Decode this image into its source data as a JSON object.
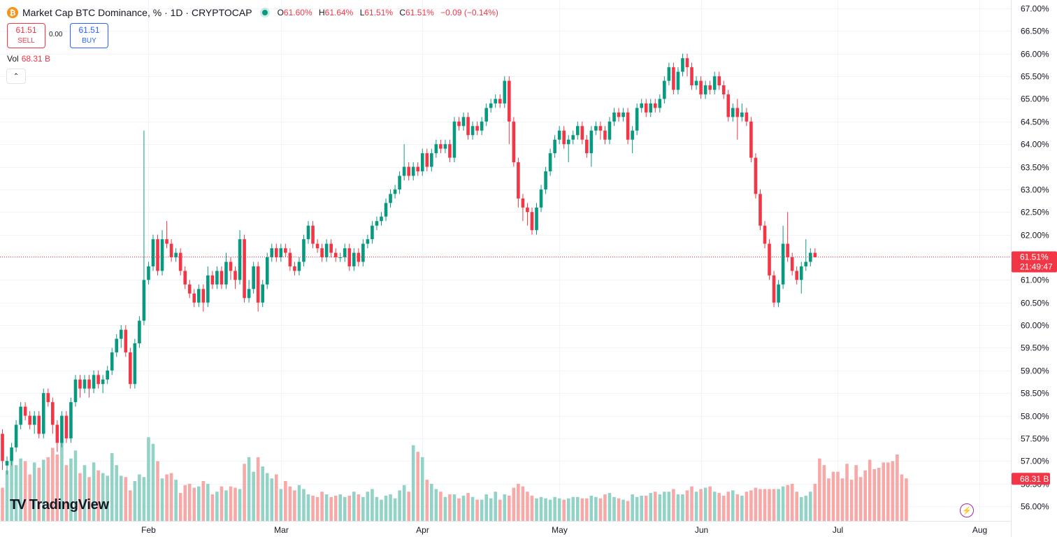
{
  "header": {
    "title": "Market Cap BTC Dominance, % · 1D · CRYPTOCAP",
    "coin_glyph": "₿",
    "open_label": "O",
    "open": "61.60%",
    "high_label": "H",
    "high": "61.64%",
    "low_label": "L",
    "low": "61.51%",
    "close_label": "C",
    "close": "61.51%",
    "change": "−0.09 (−0.14%)"
  },
  "trade": {
    "sell_price": "61.51",
    "sell_label": "SELL",
    "spread": "0.00",
    "buy_price": "61.51",
    "buy_label": "BUY"
  },
  "volume": {
    "label": "Vol",
    "value": "68.31 B"
  },
  "collapse_glyph": "⌃",
  "branding": {
    "logo_mark": "TV",
    "logo_text": "TradingView"
  },
  "bolt_glyph": "⚡",
  "colors": {
    "up": "#089981",
    "down": "#f23645",
    "vol_up": "#93d2c7",
    "vol_down": "#f7a9a7"
  },
  "chart_data": {
    "type": "candlestick",
    "ylim": [
      55.75,
      67.2
    ],
    "y_ticks": [
      "56.00%",
      "56.50%",
      "57.00%",
      "57.50%",
      "58.00%",
      "58.50%",
      "59.00%",
      "59.50%",
      "60.00%",
      "60.50%",
      "61.00%",
      "61.50%",
      "62.00%",
      "62.50%",
      "63.00%",
      "63.50%",
      "64.00%",
      "64.50%",
      "65.00%",
      "65.50%",
      "66.00%",
      "66.50%",
      "67.00%"
    ],
    "x_ticks": [
      {
        "label": "Feb",
        "index": 32
      },
      {
        "label": "Mar",
        "index": 61
      },
      {
        "label": "Apr",
        "index": 92
      },
      {
        "label": "May",
        "index": 122
      },
      {
        "label": "Jun",
        "index": 153
      },
      {
        "label": "Jul",
        "index": 183
      },
      {
        "label": "Aug",
        "index": 214
      }
    ],
    "last_price": "61.51%",
    "countdown": "21:49:47",
    "last_volume": "68.31 B",
    "candles": [
      [
        57.6,
        57.0,
        57.7,
        56.8
      ],
      [
        56.9,
        57.0,
        57.1,
        56.7
      ],
      [
        57.0,
        57.3,
        57.4,
        56.9
      ],
      [
        57.3,
        57.8,
        57.9,
        57.2
      ],
      [
        57.8,
        58.2,
        58.3,
        57.7
      ],
      [
        58.2,
        58.0,
        58.3,
        57.9
      ],
      [
        58.0,
        57.8,
        58.1,
        57.7
      ],
      [
        57.8,
        58.0,
        58.1,
        57.6
      ],
      [
        58.0,
        57.6,
        58.1,
        57.5
      ],
      [
        57.6,
        58.5,
        58.6,
        57.5
      ],
      [
        58.5,
        58.3,
        58.6,
        58.2
      ],
      [
        58.3,
        57.8,
        58.4,
        57.6
      ],
      [
        57.8,
        57.4,
        57.9,
        57.2
      ],
      [
        57.4,
        58.0,
        58.1,
        57.3
      ],
      [
        58.0,
        57.5,
        58.1,
        57.4
      ],
      [
        57.5,
        58.3,
        58.4,
        57.4
      ],
      [
        58.3,
        58.8,
        58.9,
        58.2
      ],
      [
        58.8,
        58.6,
        58.9,
        58.4
      ],
      [
        58.6,
        58.8,
        58.9,
        58.5
      ],
      [
        58.8,
        58.6,
        58.9,
        58.4
      ],
      [
        58.6,
        58.9,
        59.0,
        58.5
      ],
      [
        58.9,
        58.7,
        59.0,
        58.6
      ],
      [
        58.7,
        58.8,
        58.9,
        58.5
      ],
      [
        58.8,
        59.0,
        59.1,
        58.7
      ],
      [
        59.0,
        59.4,
        59.5,
        58.9
      ],
      [
        59.4,
        59.7,
        59.8,
        59.3
      ],
      [
        59.7,
        59.9,
        60.0,
        59.5
      ],
      [
        59.9,
        59.4,
        60.0,
        59.3
      ],
      [
        59.4,
        58.7,
        59.5,
        58.6
      ],
      [
        58.7,
        59.6,
        59.7,
        58.6
      ],
      [
        59.6,
        60.1,
        60.2,
        59.5
      ],
      [
        60.1,
        61.0,
        64.3,
        60.0
      ],
      [
        61.0,
        61.3,
        61.4,
        60.9
      ],
      [
        61.3,
        61.9,
        62.0,
        61.2
      ],
      [
        61.9,
        61.2,
        62.0,
        61.1
      ],
      [
        61.2,
        61.9,
        62.1,
        61.1
      ],
      [
        61.9,
        61.8,
        62.3,
        61.7
      ],
      [
        61.8,
        61.5,
        61.9,
        61.4
      ],
      [
        61.5,
        61.6,
        61.7,
        61.4
      ],
      [
        61.6,
        61.2,
        61.7,
        61.1
      ],
      [
        61.2,
        60.9,
        61.3,
        60.8
      ],
      [
        60.9,
        60.7,
        61.0,
        60.6
      ],
      [
        60.7,
        60.5,
        60.8,
        60.4
      ],
      [
        60.5,
        60.8,
        60.9,
        60.4
      ],
      [
        60.8,
        60.5,
        60.9,
        60.3
      ],
      [
        60.5,
        61.1,
        61.3,
        60.4
      ],
      [
        61.1,
        60.9,
        61.2,
        60.8
      ],
      [
        60.9,
        61.2,
        61.3,
        60.8
      ],
      [
        61.2,
        60.9,
        61.3,
        60.8
      ],
      [
        60.9,
        61.4,
        61.6,
        60.8
      ],
      [
        61.4,
        61.2,
        61.5,
        61.0
      ],
      [
        61.2,
        61.0,
        61.3,
        60.8
      ],
      [
        61.0,
        61.9,
        62.1,
        60.9
      ],
      [
        61.9,
        60.6,
        62.0,
        60.5
      ],
      [
        60.6,
        60.8,
        61.0,
        60.5
      ],
      [
        60.8,
        61.3,
        61.4,
        60.7
      ],
      [
        61.3,
        60.5,
        61.4,
        60.3
      ],
      [
        60.5,
        60.9,
        61.0,
        60.4
      ],
      [
        60.9,
        61.5,
        61.6,
        60.8
      ],
      [
        61.5,
        61.7,
        61.8,
        61.4
      ],
      [
        61.7,
        61.5,
        61.8,
        61.4
      ],
      [
        61.5,
        61.7,
        61.8,
        61.4
      ],
      [
        61.7,
        61.6,
        61.8,
        61.5
      ],
      [
        61.6,
        61.3,
        61.7,
        61.2
      ],
      [
        61.3,
        61.2,
        61.4,
        61.1
      ],
      [
        61.2,
        61.4,
        61.5,
        61.1
      ],
      [
        61.4,
        61.9,
        62.0,
        61.3
      ],
      [
        61.9,
        62.2,
        62.3,
        61.8
      ],
      [
        62.2,
        61.8,
        62.3,
        61.7
      ],
      [
        61.8,
        61.7,
        61.9,
        61.6
      ],
      [
        61.7,
        61.5,
        61.8,
        61.4
      ],
      [
        61.5,
        61.8,
        61.9,
        61.4
      ],
      [
        61.8,
        61.6,
        61.9,
        61.5
      ],
      [
        61.6,
        61.5,
        61.7,
        61.4
      ],
      [
        61.5,
        61.5,
        61.6,
        61.4
      ],
      [
        61.5,
        61.7,
        61.8,
        61.4
      ],
      [
        61.7,
        61.3,
        61.8,
        61.2
      ],
      [
        61.3,
        61.6,
        61.7,
        61.2
      ],
      [
        61.6,
        61.4,
        61.7,
        61.3
      ],
      [
        61.4,
        61.8,
        61.9,
        61.3
      ],
      [
        61.8,
        61.9,
        62.0,
        61.7
      ],
      [
        61.9,
        62.2,
        62.3,
        61.8
      ],
      [
        62.2,
        62.3,
        62.4,
        62.1
      ],
      [
        62.3,
        62.4,
        62.5,
        62.2
      ],
      [
        62.4,
        62.7,
        62.8,
        62.3
      ],
      [
        62.7,
        62.9,
        63.0,
        62.6
      ],
      [
        62.9,
        63.0,
        63.1,
        62.8
      ],
      [
        63.0,
        63.3,
        63.4,
        62.9
      ],
      [
        63.3,
        63.5,
        64.0,
        63.2
      ],
      [
        63.5,
        63.3,
        63.6,
        63.2
      ],
      [
        63.3,
        63.5,
        63.6,
        63.2
      ],
      [
        63.5,
        63.4,
        63.6,
        63.3
      ],
      [
        63.4,
        63.8,
        63.9,
        63.3
      ],
      [
        63.8,
        63.5,
        63.9,
        63.4
      ],
      [
        63.5,
        63.8,
        63.9,
        63.4
      ],
      [
        63.8,
        64.0,
        64.1,
        63.7
      ],
      [
        64.0,
        63.9,
        64.1,
        63.8
      ],
      [
        63.9,
        64.0,
        64.1,
        63.8
      ],
      [
        64.0,
        63.7,
        64.1,
        63.6
      ],
      [
        63.7,
        64.5,
        64.6,
        63.6
      ],
      [
        64.5,
        64.4,
        64.6,
        64.3
      ],
      [
        64.4,
        64.6,
        64.7,
        64.3
      ],
      [
        64.6,
        64.2,
        64.7,
        64.1
      ],
      [
        64.2,
        64.4,
        64.5,
        64.1
      ],
      [
        64.4,
        64.3,
        64.5,
        64.2
      ],
      [
        64.3,
        64.5,
        64.6,
        64.2
      ],
      [
        64.5,
        64.8,
        64.9,
        64.4
      ],
      [
        64.8,
        64.9,
        65.0,
        64.7
      ],
      [
        64.9,
        65.0,
        65.1,
        64.8
      ],
      [
        65.0,
        64.9,
        65.1,
        64.8
      ],
      [
        64.9,
        65.4,
        65.5,
        64.8
      ],
      [
        65.4,
        64.5,
        65.5,
        64.0
      ],
      [
        64.5,
        63.6,
        64.6,
        63.5
      ],
      [
        63.6,
        62.8,
        63.7,
        62.6
      ],
      [
        62.8,
        62.6,
        62.9,
        62.3
      ],
      [
        62.6,
        62.5,
        62.7,
        62.2
      ],
      [
        62.5,
        62.1,
        62.6,
        62.0
      ],
      [
        62.1,
        62.6,
        62.7,
        62.0
      ],
      [
        62.6,
        63.0,
        63.1,
        62.5
      ],
      [
        63.0,
        63.4,
        63.5,
        62.9
      ],
      [
        63.4,
        63.8,
        63.9,
        63.3
      ],
      [
        63.8,
        64.1,
        64.2,
        63.7
      ],
      [
        64.1,
        64.3,
        64.4,
        64.0
      ],
      [
        64.3,
        64.0,
        64.4,
        63.9
      ],
      [
        64.0,
        64.1,
        64.2,
        63.6
      ],
      [
        64.1,
        64.2,
        64.3,
        64.0
      ],
      [
        64.2,
        64.4,
        64.5,
        64.1
      ],
      [
        64.4,
        64.1,
        64.5,
        64.0
      ],
      [
        64.1,
        63.8,
        64.2,
        63.7
      ],
      [
        63.8,
        64.3,
        64.4,
        63.5
      ],
      [
        64.3,
        64.4,
        64.5,
        64.2
      ],
      [
        64.4,
        64.3,
        64.5,
        64.1
      ],
      [
        64.3,
        64.1,
        64.4,
        64.0
      ],
      [
        64.1,
        64.5,
        64.6,
        64.0
      ],
      [
        64.5,
        64.7,
        64.8,
        64.4
      ],
      [
        64.7,
        64.6,
        64.8,
        64.5
      ],
      [
        64.6,
        64.7,
        64.8,
        64.5
      ],
      [
        64.7,
        64.1,
        64.8,
        64.0
      ],
      [
        64.1,
        64.3,
        64.4,
        63.8
      ],
      [
        64.3,
        64.8,
        64.9,
        64.2
      ],
      [
        64.8,
        64.9,
        65.0,
        64.7
      ],
      [
        64.9,
        64.7,
        65.0,
        64.6
      ],
      [
        64.7,
        64.9,
        65.0,
        64.6
      ],
      [
        64.9,
        64.8,
        65.0,
        64.7
      ],
      [
        64.8,
        65.0,
        65.1,
        64.7
      ],
      [
        65.0,
        65.4,
        65.5,
        64.9
      ],
      [
        65.4,
        65.7,
        65.8,
        65.3
      ],
      [
        65.7,
        65.2,
        65.8,
        65.1
      ],
      [
        65.2,
        65.6,
        65.7,
        65.1
      ],
      [
        65.6,
        65.9,
        66.0,
        65.5
      ],
      [
        65.9,
        65.7,
        66.0,
        65.5
      ],
      [
        65.7,
        65.3,
        65.8,
        65.2
      ],
      [
        65.3,
        65.4,
        65.5,
        65.2
      ],
      [
        65.4,
        65.1,
        65.5,
        65.0
      ],
      [
        65.1,
        65.3,
        65.4,
        65.0
      ],
      [
        65.3,
        65.2,
        65.4,
        65.1
      ],
      [
        65.2,
        65.5,
        65.6,
        65.1
      ],
      [
        65.5,
        65.3,
        65.6,
        65.2
      ],
      [
        65.3,
        65.1,
        65.4,
        65.0
      ],
      [
        65.1,
        64.6,
        65.2,
        64.5
      ],
      [
        64.6,
        64.8,
        64.9,
        64.5
      ],
      [
        64.8,
        64.6,
        65.0,
        64.1
      ],
      [
        64.6,
        64.7,
        64.9,
        64.5
      ],
      [
        64.7,
        64.5,
        64.8,
        64.4
      ],
      [
        64.5,
        63.7,
        64.6,
        63.6
      ],
      [
        63.7,
        62.9,
        63.8,
        62.8
      ],
      [
        62.9,
        62.2,
        63.0,
        62.1
      ],
      [
        62.2,
        61.8,
        62.3,
        61.7
      ],
      [
        61.8,
        61.1,
        61.9,
        61.0
      ],
      [
        61.1,
        60.5,
        61.2,
        60.4
      ],
      [
        60.5,
        60.9,
        61.0,
        60.4
      ],
      [
        60.9,
        61.8,
        62.2,
        60.8
      ],
      [
        61.8,
        61.5,
        62.5,
        61.4
      ],
      [
        61.5,
        61.2,
        61.6,
        61.1
      ],
      [
        61.2,
        61.0,
        61.3,
        60.9
      ],
      [
        61.0,
        61.3,
        61.4,
        60.7
      ],
      [
        61.3,
        61.4,
        61.9,
        61.2
      ],
      [
        61.4,
        61.6,
        61.7,
        61.3
      ],
      [
        61.6,
        61.5,
        61.7,
        61.5
      ]
    ],
    "volume": [
      0.25,
      0.38,
      0.47,
      0.42,
      0.47,
      0.45,
      0.35,
      0.44,
      0.4,
      0.46,
      0.48,
      0.55,
      0.5,
      0.65,
      0.42,
      0.47,
      0.53,
      0.36,
      0.42,
      0.33,
      0.44,
      0.38,
      0.36,
      0.34,
      0.51,
      0.42,
      0.34,
      0.33,
      0.23,
      0.3,
      0.35,
      0.33,
      0.63,
      0.58,
      0.45,
      0.32,
      0.35,
      0.36,
      0.31,
      0.21,
      0.27,
      0.28,
      0.25,
      0.26,
      0.3,
      0.28,
      0.2,
      0.22,
      0.26,
      0.23,
      0.26,
      0.25,
      0.24,
      0.43,
      0.48,
      0.37,
      0.48,
      0.41,
      0.36,
      0.32,
      0.35,
      0.24,
      0.3,
      0.26,
      0.23,
      0.27,
      0.24,
      0.2,
      0.19,
      0.18,
      0.22,
      0.2,
      0.18,
      0.19,
      0.2,
      0.18,
      0.19,
      0.22,
      0.2,
      0.18,
      0.22,
      0.24,
      0.18,
      0.16,
      0.19,
      0.2,
      0.17,
      0.23,
      0.27,
      0.22,
      0.57,
      0.52,
      0.48,
      0.31,
      0.28,
      0.24,
      0.22,
      0.18,
      0.2,
      0.2,
      0.17,
      0.19,
      0.21,
      0.18,
      0.16,
      0.16,
      0.2,
      0.17,
      0.22,
      0.16,
      0.2,
      0.19,
      0.25,
      0.28,
      0.26,
      0.22,
      0.19,
      0.17,
      0.18,
      0.17,
      0.16,
      0.18,
      0.17,
      0.16,
      0.17,
      0.18,
      0.18,
      0.17,
      0.17,
      0.19,
      0.18,
      0.17,
      0.2,
      0.21,
      0.18,
      0.17,
      0.16,
      0.15,
      0.2,
      0.18,
      0.19,
      0.19,
      0.21,
      0.22,
      0.2,
      0.22,
      0.22,
      0.24,
      0.2,
      0.2,
      0.23,
      0.26,
      0.22,
      0.24,
      0.25,
      0.26,
      0.22,
      0.21,
      0.19,
      0.22,
      0.23,
      0.2,
      0.19,
      0.22,
      0.23,
      0.25,
      0.24,
      0.24,
      0.24,
      0.24,
      0.24,
      0.26,
      0.27,
      0.28,
      0.22,
      0.18,
      0.19,
      0.22,
      0.28,
      0.47,
      0.42,
      0.32,
      0.37,
      0.37,
      0.32,
      0.43,
      0.31,
      0.42,
      0.33,
      0.38,
      0.46,
      0.39,
      0.4,
      0.44,
      0.44,
      0.45,
      0.5,
      0.35,
      0.32
    ]
  }
}
